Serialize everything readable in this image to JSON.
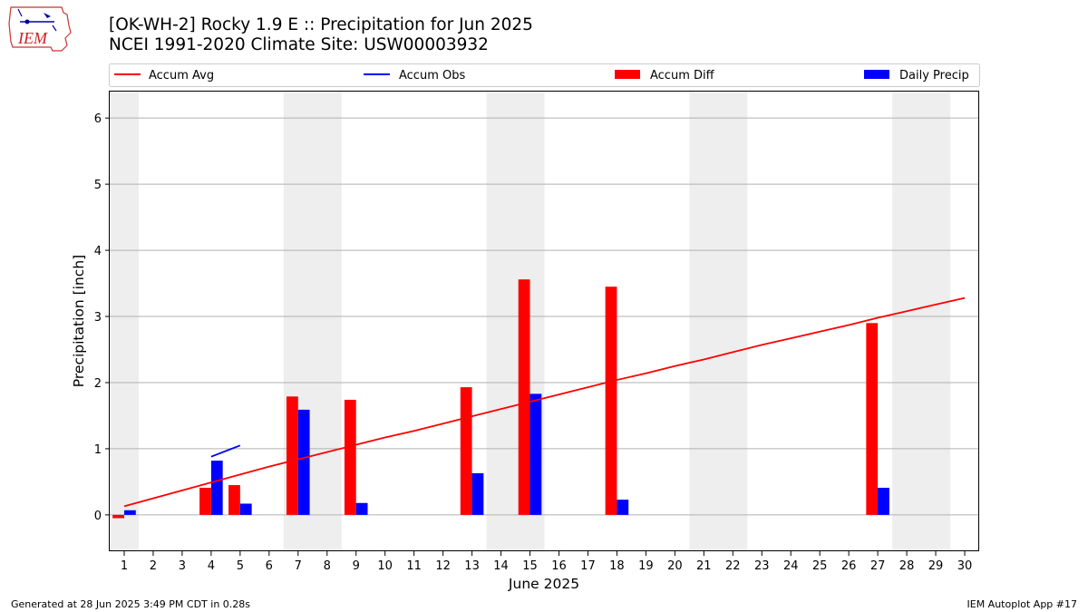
{
  "header": {
    "title_line1": "[OK-WH-2] Rocky 1.9 E :: Precipitation for Jun 2025",
    "title_line2": "NCEI 1991-2020 Climate Site: USW00003932",
    "logo_text": "IEM"
  },
  "footer": {
    "generated": "Generated at 28 Jun 2025 3:49 PM CDT in 0.28s",
    "app": "IEM Autoplot App #17"
  },
  "colors": {
    "accum_avg": "#ff0000",
    "accum_obs": "#0000ff",
    "accum_diff": "#ff0000",
    "daily_precip": "#0000ff",
    "weekend_shade": "#eeeeee",
    "grid": "#b0b0b0"
  },
  "chart_data": {
    "type": "bar",
    "xlabel": "June 2025",
    "ylabel": "Precipitation [inch]",
    "xlim": [
      0.5,
      30.5
    ],
    "ylim": [
      -0.55,
      6.4
    ],
    "x_ticks": [
      1,
      2,
      3,
      4,
      5,
      6,
      7,
      8,
      9,
      10,
      11,
      12,
      13,
      14,
      15,
      16,
      17,
      18,
      19,
      20,
      21,
      22,
      23,
      24,
      25,
      26,
      27,
      28,
      29,
      30
    ],
    "y_ticks": [
      0,
      1,
      2,
      3,
      4,
      5,
      6
    ],
    "grid": "horizontal",
    "legend": {
      "placement": "top",
      "entries": [
        {
          "label": "Accum Avg",
          "kind": "line",
          "color": "#ff0000"
        },
        {
          "label": "Accum Obs",
          "kind": "line",
          "color": "#0000ff"
        },
        {
          "label": "Accum Diff",
          "kind": "bar",
          "color": "#ff0000"
        },
        {
          "label": "Daily Precip",
          "kind": "bar",
          "color": "#0000ff"
        }
      ]
    },
    "weekend_spans": [
      [
        0.5,
        1.5
      ],
      [
        6.5,
        8.5
      ],
      [
        13.5,
        15.5
      ],
      [
        20.5,
        22.5
      ],
      [
        27.5,
        29.5
      ]
    ],
    "series": [
      {
        "name": "Accum Avg",
        "kind": "line",
        "x": [
          1,
          2,
          3,
          4,
          5,
          6,
          7,
          8,
          9,
          10,
          11,
          12,
          13,
          14,
          15,
          16,
          17,
          18,
          19,
          20,
          21,
          22,
          23,
          24,
          25,
          26,
          27,
          28,
          29,
          30
        ],
        "values": [
          0.13,
          0.25,
          0.37,
          0.49,
          0.61,
          0.73,
          0.84,
          0.95,
          1.06,
          1.17,
          1.27,
          1.38,
          1.49,
          1.6,
          1.71,
          1.82,
          1.93,
          2.04,
          2.14,
          2.25,
          2.35,
          2.46,
          2.57,
          2.67,
          2.77,
          2.87,
          2.98,
          3.08,
          3.18,
          3.28
        ]
      },
      {
        "name": "Accum Obs",
        "kind": "line",
        "x": [
          4,
          5
        ],
        "values": [
          0.88,
          1.05
        ]
      },
      {
        "name": "Accum Diff",
        "kind": "bar",
        "x": [
          1,
          4,
          5,
          7,
          9,
          13,
          15,
          18,
          27
        ],
        "values": [
          -0.05,
          0.41,
          0.45,
          1.79,
          1.74,
          1.93,
          3.56,
          3.45,
          2.9
        ]
      },
      {
        "name": "Daily Precip",
        "kind": "bar",
        "x": [
          1,
          4,
          5,
          7,
          9,
          13,
          15,
          18,
          27
        ],
        "values": [
          0.07,
          0.82,
          0.17,
          1.59,
          0.18,
          0.63,
          1.83,
          0.23,
          0.41
        ]
      }
    ]
  }
}
